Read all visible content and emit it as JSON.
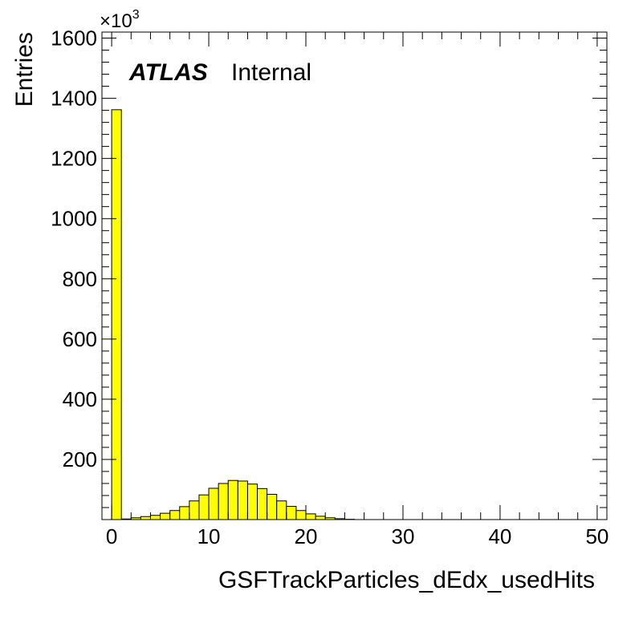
{
  "chart_data": {
    "type": "bar",
    "title": "",
    "xlabel": "GSFTrackParticles_dEdx_usedHits",
    "ylabel": "Entries",
    "y_multiplier": "×10",
    "y_multiplier_exp": "3",
    "atlas_label": "ATLAS",
    "atlas_sublabel": "Internal",
    "xlim": [
      -1,
      51
    ],
    "ylim": [
      0,
      1620
    ],
    "x_ticks": [
      0,
      10,
      20,
      30,
      40,
      50
    ],
    "y_ticks": [
      200,
      400,
      600,
      800,
      1000,
      1200,
      1400,
      1600
    ],
    "bin_width": 1,
    "fill_color": "#ffff00",
    "line_color": "#000000",
    "bins": [
      {
        "x": 0,
        "value": 1362
      },
      {
        "x": 1,
        "value": 2
      },
      {
        "x": 2,
        "value": 6
      },
      {
        "x": 3,
        "value": 10
      },
      {
        "x": 4,
        "value": 14
      },
      {
        "x": 5,
        "value": 21
      },
      {
        "x": 6,
        "value": 30
      },
      {
        "x": 7,
        "value": 43
      },
      {
        "x": 8,
        "value": 62
      },
      {
        "x": 9,
        "value": 82
      },
      {
        "x": 10,
        "value": 104
      },
      {
        "x": 11,
        "value": 120
      },
      {
        "x": 12,
        "value": 130
      },
      {
        "x": 13,
        "value": 128
      },
      {
        "x": 14,
        "value": 118
      },
      {
        "x": 15,
        "value": 103
      },
      {
        "x": 16,
        "value": 84
      },
      {
        "x": 17,
        "value": 62
      },
      {
        "x": 18,
        "value": 44
      },
      {
        "x": 19,
        "value": 30
      },
      {
        "x": 20,
        "value": 19
      },
      {
        "x": 21,
        "value": 11
      },
      {
        "x": 22,
        "value": 6
      },
      {
        "x": 23,
        "value": 3
      },
      {
        "x": 24,
        "value": 1
      }
    ]
  }
}
